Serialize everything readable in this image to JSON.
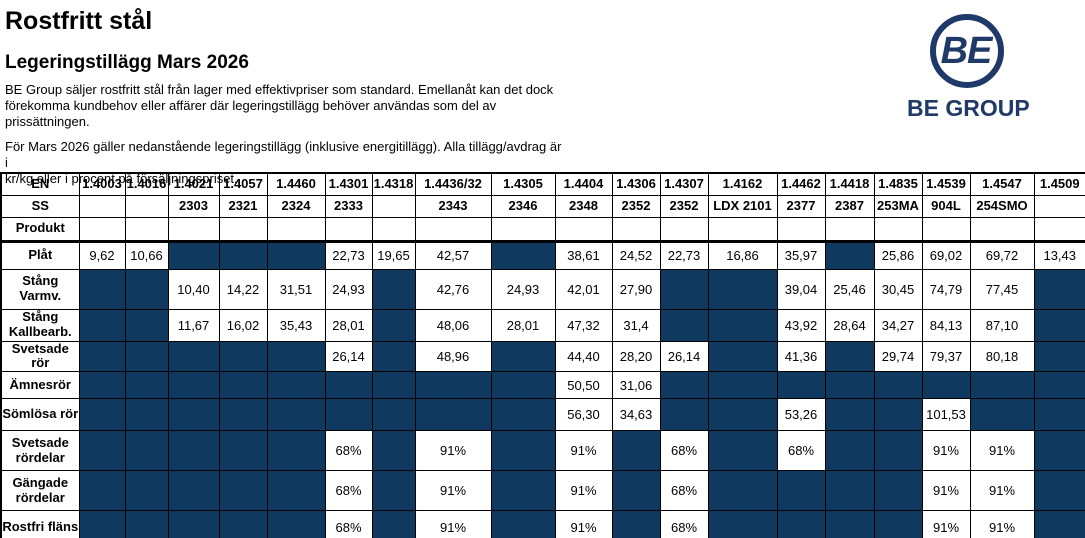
{
  "page": {
    "title": "Rostfritt stål",
    "subtitle": "Legeringstillägg Mars 2026",
    "paragraph1": "BE Group säljer rostfritt stål från lager med effektivpriser som standard. Emellanåt kan det dock\nförekomma kundbehov eller affärer där legeringstillägg behöver användas som del av prissättningen.",
    "paragraph2": "För Mars 2026 gäller nedanstående legeringstillägg (inklusive energitillägg). Alla tillägg/avdrag är i\nkr/kg eller i procent på försäljningspriset."
  },
  "logo": {
    "circle_text": "BE",
    "wordmark": "BE GROUP"
  },
  "colors": {
    "logo_navy": "#1f3a68",
    "cell_dark": "#0f395e",
    "border": "#000000"
  },
  "table": {
    "row_header_labels": {
      "en": "EN",
      "ss": "SS",
      "produkt": "Produkt"
    },
    "columns": [
      {
        "en": "1.4003",
        "ss": ""
      },
      {
        "en": "1.4016",
        "ss": ""
      },
      {
        "en": "1.4021",
        "ss": "2303"
      },
      {
        "en": "1.4057",
        "ss": "2321"
      },
      {
        "en": "1.4460",
        "ss": "2324"
      },
      {
        "en": "1.4301",
        "ss": "2333"
      },
      {
        "en": "1.4318",
        "ss": ""
      },
      {
        "en": "1.4436/32",
        "ss": "2343"
      },
      {
        "en": "1.4305",
        "ss": "2346"
      },
      {
        "en": "1.4404",
        "ss": "2348"
      },
      {
        "en": "1.4306",
        "ss": "2352"
      },
      {
        "en": "1.4307",
        "ss": "2352"
      },
      {
        "en": "1.4162",
        "ss": "LDX 2101"
      },
      {
        "en": "1.4462",
        "ss": "2377"
      },
      {
        "en": "1.4418",
        "ss": "2387"
      },
      {
        "en": "1.4835",
        "ss": "253MA"
      },
      {
        "en": "1.4539",
        "ss": "904L"
      },
      {
        "en": "1.4547",
        "ss": "254SMO"
      },
      {
        "en": "1.4509",
        "ss": ""
      }
    ],
    "rows": [
      {
        "label": "Plåt",
        "cells": [
          "9,62",
          "10,66",
          null,
          null,
          null,
          "22,73",
          "19,65",
          "42,57",
          null,
          "38,61",
          "24,52",
          "22,73",
          "16,86",
          "35,97",
          null,
          "25,86",
          "69,02",
          "69,72",
          "13,43"
        ]
      },
      {
        "label": "Stång\nVarmv.",
        "cells": [
          null,
          null,
          "10,40",
          "14,22",
          "31,51",
          "24,93",
          null,
          "42,76",
          "24,93",
          "42,01",
          "27,90",
          null,
          null,
          "39,04",
          "25,46",
          "30,45",
          "74,79",
          "77,45",
          null
        ]
      },
      {
        "label": "Stång\nKallbearb.",
        "cells": [
          null,
          null,
          "11,67",
          "16,02",
          "35,43",
          "28,01",
          null,
          "48,06",
          "28,01",
          "47,32",
          "31,4",
          null,
          null,
          "43,92",
          "28,64",
          "34,27",
          "84,13",
          "87,10",
          null
        ]
      },
      {
        "label": "Svetsade rör",
        "cells": [
          null,
          null,
          null,
          null,
          null,
          "26,14",
          null,
          "48,96",
          null,
          "44,40",
          "28,20",
          "26,14",
          null,
          "41,36",
          null,
          "29,74",
          "79,37",
          "80,18",
          null
        ]
      },
      {
        "label": "Ämnesrör",
        "cells": [
          null,
          null,
          null,
          null,
          null,
          null,
          null,
          null,
          null,
          "50,50",
          "31,06",
          null,
          null,
          null,
          null,
          null,
          null,
          null,
          null
        ]
      },
      {
        "label": "Sömlösa rör",
        "cells": [
          null,
          null,
          null,
          null,
          null,
          null,
          null,
          null,
          null,
          "56,30",
          "34,63",
          null,
          null,
          "53,26",
          null,
          null,
          "101,53",
          null,
          null
        ]
      },
      {
        "label": "Svetsade\nrördelar",
        "cells": [
          null,
          null,
          null,
          null,
          null,
          "68%",
          null,
          "91%",
          null,
          "91%",
          null,
          "68%",
          null,
          "68%",
          null,
          null,
          "91%",
          "91%",
          null
        ]
      },
      {
        "label": "Gängade\nrördelar",
        "cells": [
          null,
          null,
          null,
          null,
          null,
          "68%",
          null,
          "91%",
          null,
          "91%",
          null,
          "68%",
          null,
          null,
          null,
          null,
          "91%",
          "91%",
          null
        ]
      },
      {
        "label": "Rostfri fläns",
        "cells": [
          null,
          null,
          null,
          null,
          null,
          "68%",
          null,
          "91%",
          null,
          "91%",
          null,
          "68%",
          null,
          null,
          null,
          null,
          "91%",
          "91%",
          null
        ]
      }
    ]
  }
}
